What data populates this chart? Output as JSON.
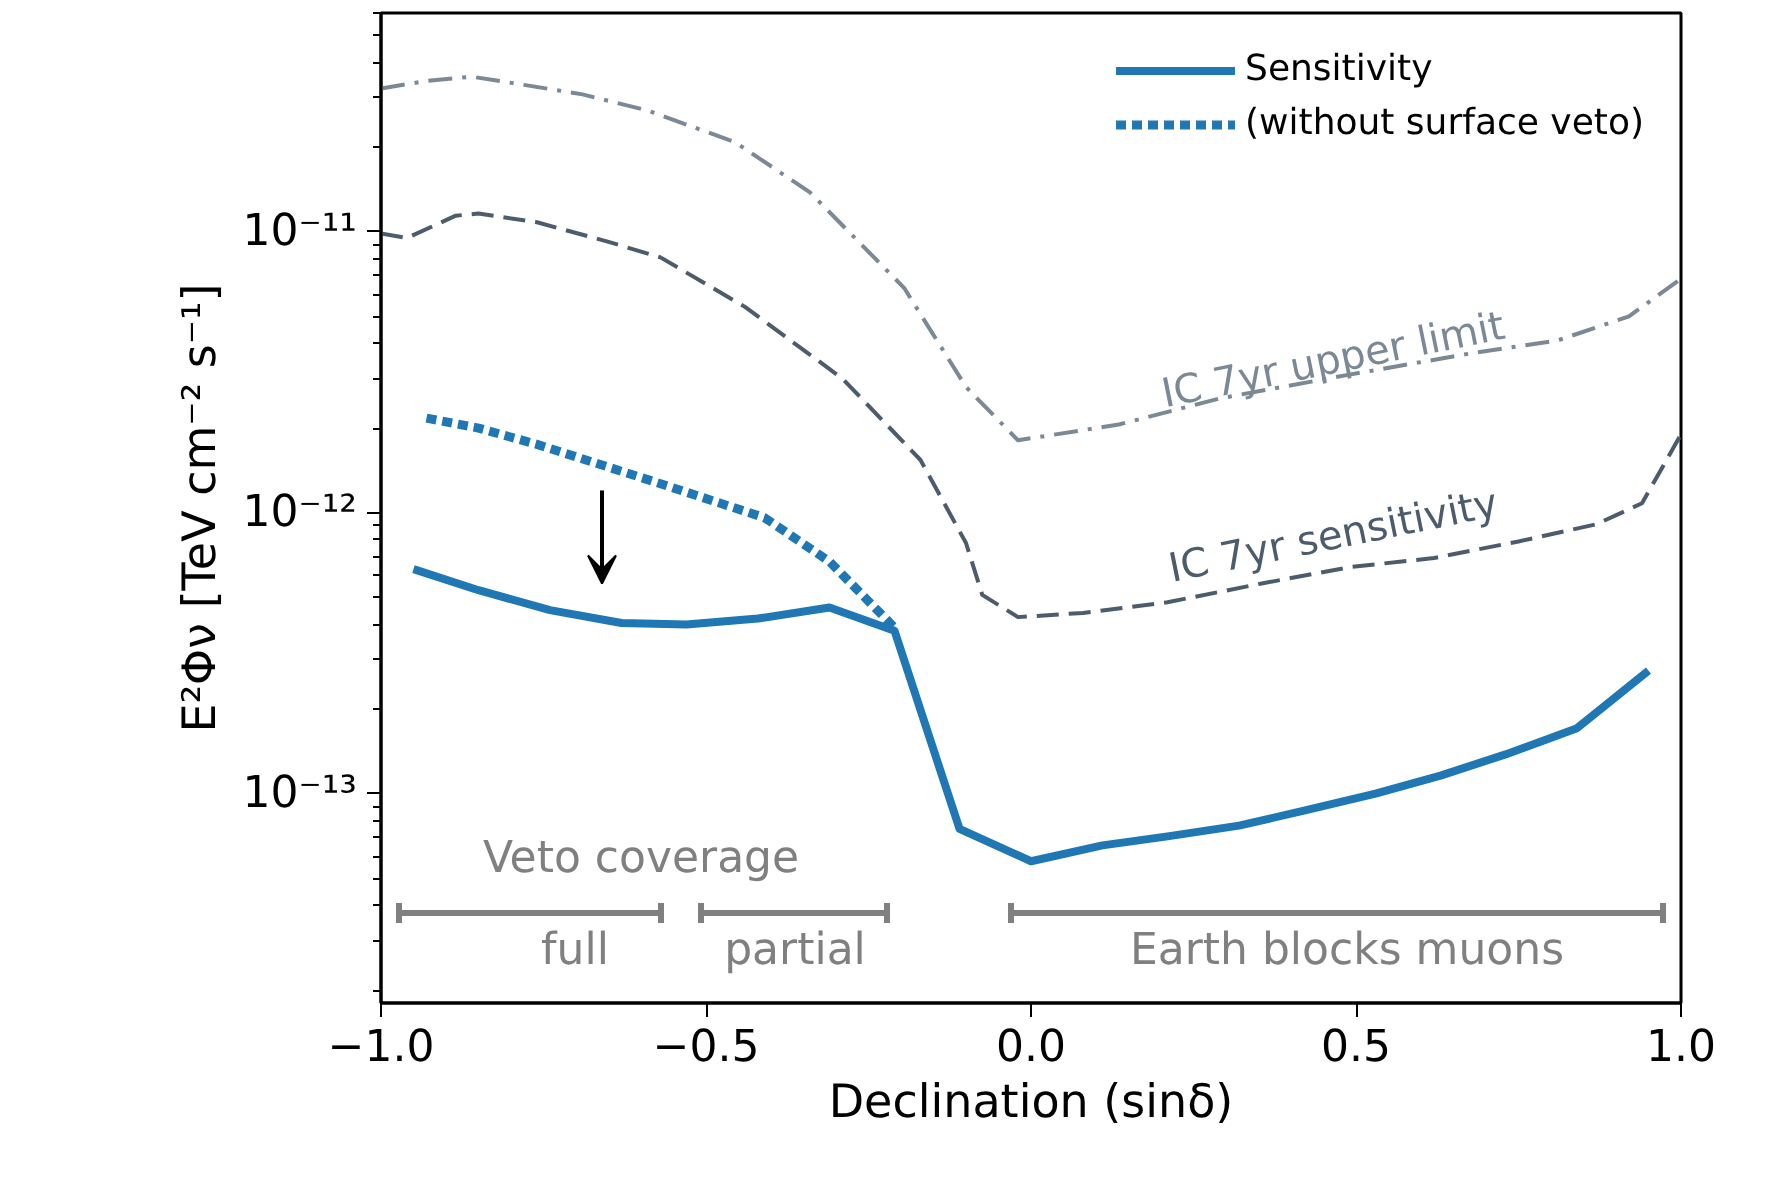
{
  "chart_data": {
    "type": "line",
    "xlabel": "Declination (sinδ)",
    "ylabel": "E²Φν [TeV cm⁻² s⁻¹]",
    "xlim": [
      -1.0,
      1.0
    ],
    "ylim": [
      1.8e-14,
      6e-11
    ],
    "log": true,
    "grid": false,
    "legend": "top right",
    "xticks": [
      {
        "value": -1.0,
        "label": "−1.0"
      },
      {
        "value": -0.5,
        "label": "−0.5"
      },
      {
        "value": 0.0,
        "label": "0.0"
      },
      {
        "value": 0.5,
        "label": "0.5"
      },
      {
        "value": 1.0,
        "label": "1.0"
      }
    ],
    "yticks": [
      {
        "value": 1e-13,
        "label": "10⁻¹³"
      },
      {
        "value": 1e-12,
        "label": "10⁻¹²"
      },
      {
        "value": 1e-11,
        "label": "10⁻¹¹"
      }
    ],
    "series": [
      {
        "name": "Sensitivity",
        "color": "#1f77b4",
        "line_style": "solid",
        "x": [
          -0.95,
          -0.85,
          -0.74,
          -0.63,
          -0.53,
          -0.42,
          -0.31,
          -0.21,
          -0.11,
          0.0,
          0.11,
          0.21,
          0.32,
          0.42,
          0.53,
          0.63,
          0.73,
          0.84,
          0.95
        ],
        "values": [
          6.3e-13,
          5.3e-13,
          4.5e-13,
          4.05e-13,
          4e-13,
          4.2e-13,
          4.6e-13,
          3.8e-13,
          7.5e-14,
          5.75e-14,
          6.55e-14,
          7.05e-14,
          7.7e-14,
          8.7e-14,
          1e-13,
          1.16e-13,
          1.38e-13,
          1.71e-13,
          2.74e-13
        ]
      },
      {
        "name": "(without surface veto)",
        "color": "#1f77b4",
        "line_style": "dotted",
        "x": [
          -0.93,
          -0.85,
          -0.76,
          -0.58,
          -0.41,
          -0.31,
          -0.21
        ],
        "values": [
          2.17e-12,
          2e-12,
          1.75e-12,
          1.29e-12,
          9.6e-13,
          6.7e-13,
          3.9e-13
        ]
      },
      {
        "color": "#4c5c6c",
        "line_style": "dashed",
        "x": [
          -1.0,
          -0.96,
          -0.885,
          -0.85,
          -0.76,
          -0.65,
          -0.57,
          -0.44,
          -0.29,
          -0.17,
          -0.1,
          -0.075,
          -0.02,
          0.08,
          0.21,
          0.355,
          0.49,
          0.62,
          0.75,
          0.87,
          0.94,
          1.0
        ],
        "values": [
          9.85e-12,
          9.5e-12,
          1.14e-11,
          1.16e-11,
          1.08e-11,
          9.2e-12,
          8.1e-12,
          5.4e-12,
          3e-12,
          1.54e-12,
          7.8e-13,
          5.1e-13,
          4.25e-13,
          4.4e-13,
          4.8e-13,
          5.6e-13,
          6.4e-13,
          6.9e-13,
          7.9e-13,
          9.1e-13,
          1.08e-12,
          1.9e-12
        ]
      },
      {
        "color": "#7b8896",
        "line_style": "dashdot",
        "x": [
          -1.0,
          -0.93,
          -0.86,
          -0.78,
          -0.69,
          -0.59,
          -0.455,
          -0.34,
          -0.195,
          -0.1,
          -0.02,
          0.135,
          0.29,
          0.49,
          0.68,
          0.81,
          0.92,
          1.0
        ],
        "values": [
          3.23e-11,
          3.44e-11,
          3.56e-11,
          3.33e-11,
          3.08e-11,
          2.7e-11,
          2.08e-11,
          1.38e-11,
          6.3e-12,
          2.8e-12,
          1.81e-12,
          2.06e-12,
          2.55e-12,
          3.1e-12,
          3.7e-12,
          4.1e-12,
          5e-12,
          6.8e-12
        ]
      }
    ],
    "annotations": [
      "IC 7yr upper limit",
      "IC 7yr sensitivity",
      "Veto coverage",
      "full",
      "partial",
      "Earth blocks muons"
    ]
  }
}
